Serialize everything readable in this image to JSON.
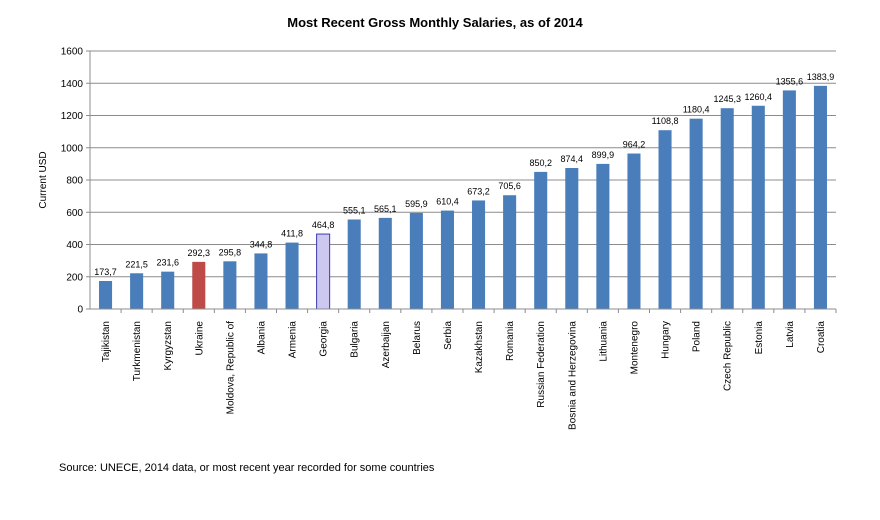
{
  "chart_data": {
    "type": "bar",
    "title": "Most Recent Gross Monthly Salaries, as of 2014",
    "xlabel": "",
    "ylabel": "Current USD",
    "ylim": [
      0,
      1600
    ],
    "yticks": [
      0,
      200,
      400,
      600,
      800,
      1000,
      1200,
      1400,
      1600
    ],
    "grid": true,
    "categories": [
      "Tajikistan",
      "Turkmenistan",
      "Kyrgyzstan",
      "Ukraine",
      "Moldova, Republic of",
      "Albania",
      "Armenia",
      "Georgia",
      "Bulgaria",
      "Azerbaijan",
      "Belarus",
      "Serbia",
      "Kazakhstan",
      "Romania",
      "Russian Federation",
      "Bosnia and Herzegovina",
      "Lithuania",
      "Montenegro",
      "Hungary",
      "Poland",
      "Czech Republic",
      "Estonia",
      "Latvia",
      "Croatia"
    ],
    "values": [
      173.7,
      221.5,
      231.6,
      292.3,
      295.8,
      344.8,
      411.8,
      464.8,
      555.1,
      565.1,
      595.9,
      610.4,
      673.2,
      705.6,
      850.2,
      874.4,
      899.9,
      964.2,
      1108.8,
      1180.4,
      1245.3,
      1260.4,
      1355.6,
      1383.9
    ],
    "data_labels": [
      "173,7",
      "221,5",
      "231,6",
      "292,3",
      "295,8",
      "344,8",
      "411,8",
      "464,8",
      "555,1",
      "565,1",
      "595,9",
      "610,4",
      "673,2",
      "705,6",
      "850,2",
      "874,4",
      "899,9",
      "964,2",
      "1108,8",
      "1180,4",
      "1245,3",
      "1260,4",
      "1355,6",
      "1383,9"
    ],
    "colors": {
      "default": "#4a7ebb",
      "highlight_red": "#be4b48",
      "highlight_light": "#ccc8f0",
      "highlight_light_border": "#3b3bb0"
    },
    "highlights": {
      "Ukraine": "red",
      "Georgia": "light"
    }
  },
  "source_note": "Source: UNECE,  2014  data,  or most recent year recorded for some countries"
}
